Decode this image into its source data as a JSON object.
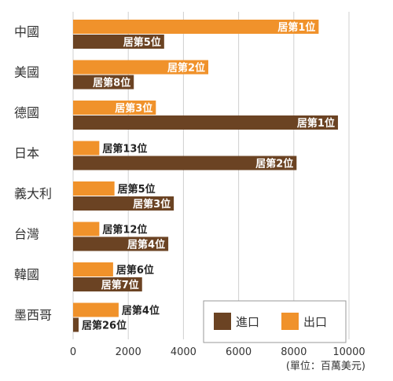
{
  "chart_data": {
    "type": "bar",
    "orientation": "horizontal",
    "categories": [
      "中國",
      "美國",
      "德國",
      "日本",
      "義大利",
      "台灣",
      "韓國",
      "墨西哥"
    ],
    "series": [
      {
        "name": "出口",
        "color": "#f0922b",
        "values": [
          8900,
          4900,
          3000,
          950,
          1500,
          950,
          1450,
          1650
        ],
        "labels": [
          "居第1位",
          "居第2位",
          "居第3位",
          "居第13位",
          "居第5位",
          "居第12位",
          "居第6位",
          "居第4位"
        ]
      },
      {
        "name": "進口",
        "color": "#6b4323",
        "values": [
          3300,
          2200,
          9600,
          8100,
          3650,
          3450,
          2500,
          200
        ],
        "labels": [
          "居第5位",
          "居第8位",
          "居第1位",
          "居第2位",
          "居第3位",
          "居第4位",
          "居第7位",
          "居第26位"
        ]
      }
    ],
    "xlim": [
      0,
      10000
    ],
    "xticks": [
      "0",
      "2000",
      "4000",
      "6000",
      "8000",
      "10000"
    ],
    "unit": "(單位：百萬美元)",
    "legend": {
      "placement": "bottom-right",
      "order": [
        "進口",
        "出口"
      ]
    },
    "grid": "vertical"
  }
}
